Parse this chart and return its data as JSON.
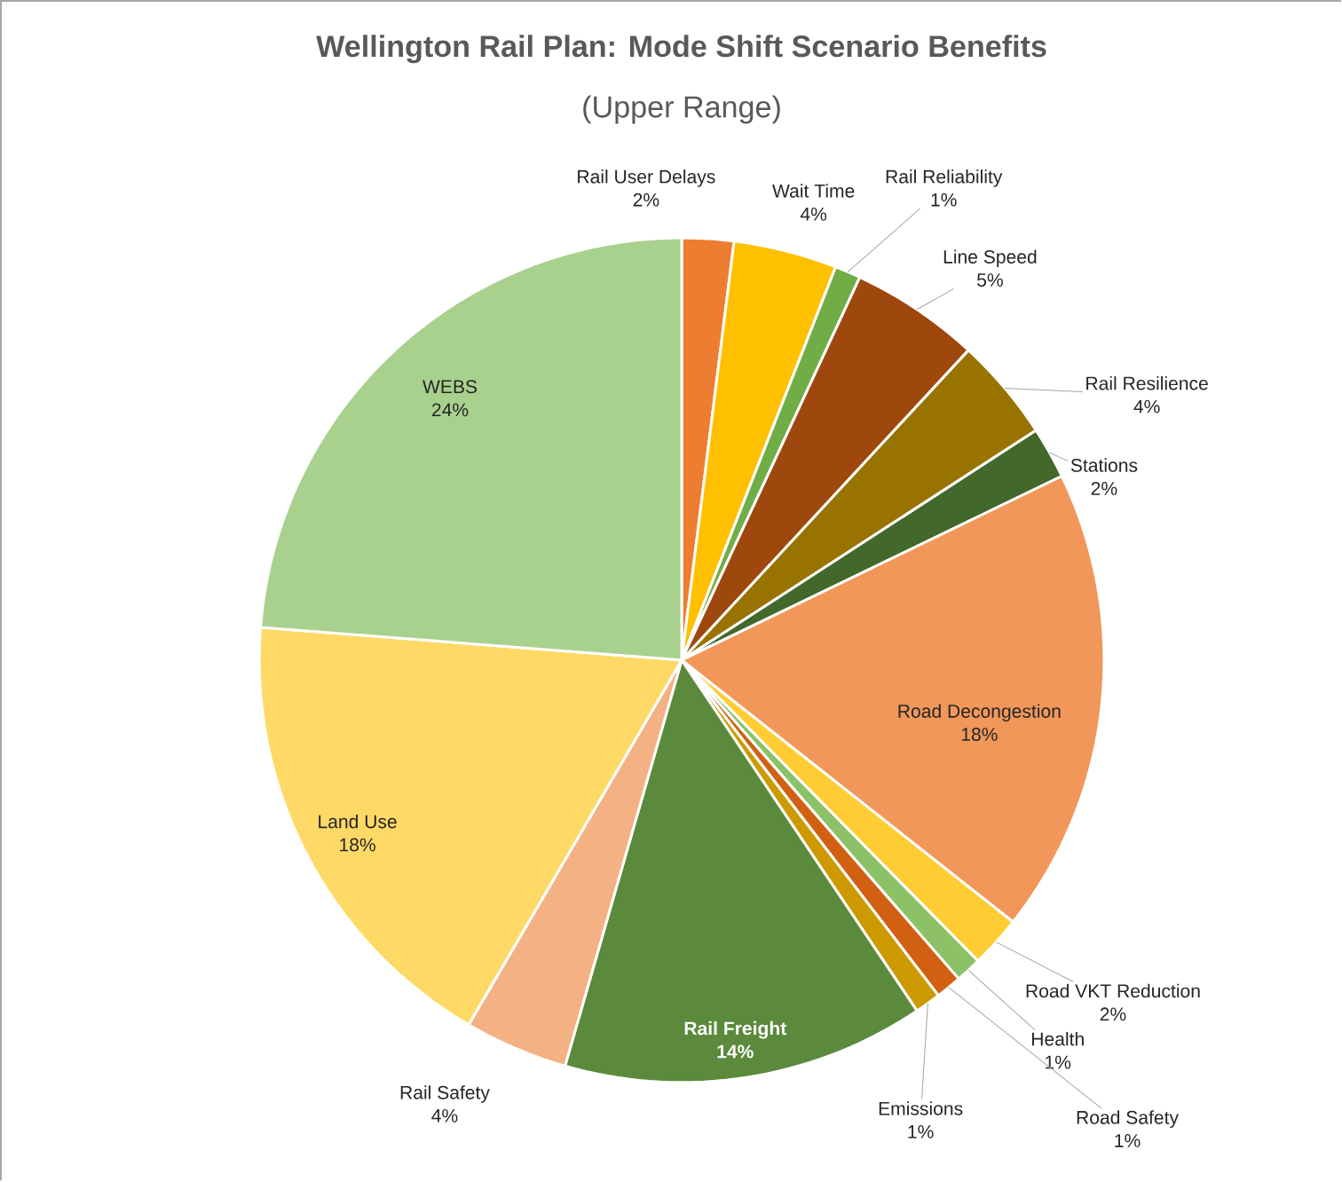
{
  "chart_data": {
    "type": "pie",
    "title": "Wellington Rail Plan: Mode Shift Scenario Benefits",
    "subtitle": "(Upper Range)",
    "categories": [
      "Rail User Delays",
      "Wait Time",
      "Rail Reliability",
      "Line Speed",
      "Rail Resilience",
      "Stations",
      "Road Decongestion",
      "Road VKT Reduction",
      "Health",
      "Road Safety",
      "Emissions",
      "Rail Freight",
      "Rail Safety",
      "Land Use",
      "WEBS"
    ],
    "values": [
      2,
      4,
      1,
      5,
      4,
      2,
      18,
      2,
      1,
      1,
      1,
      14,
      4,
      18,
      24
    ],
    "value_labels": [
      "2%",
      "4%",
      "1%",
      "5%",
      "4%",
      "2%",
      "18%",
      "2%",
      "1%",
      "1%",
      "1%",
      "14%",
      "4%",
      "18%",
      "24%"
    ],
    "colors": [
      "#ed7d31",
      "#ffc000",
      "#70ad47",
      "#9e480e",
      "#997300",
      "#43682b",
      "#f1975a",
      "#ffcd33",
      "#8cc168",
      "#d26012",
      "#cc9a00",
      "#5b8a3c",
      "#f4b183",
      "#ffd966",
      "#a9d18e"
    ]
  }
}
